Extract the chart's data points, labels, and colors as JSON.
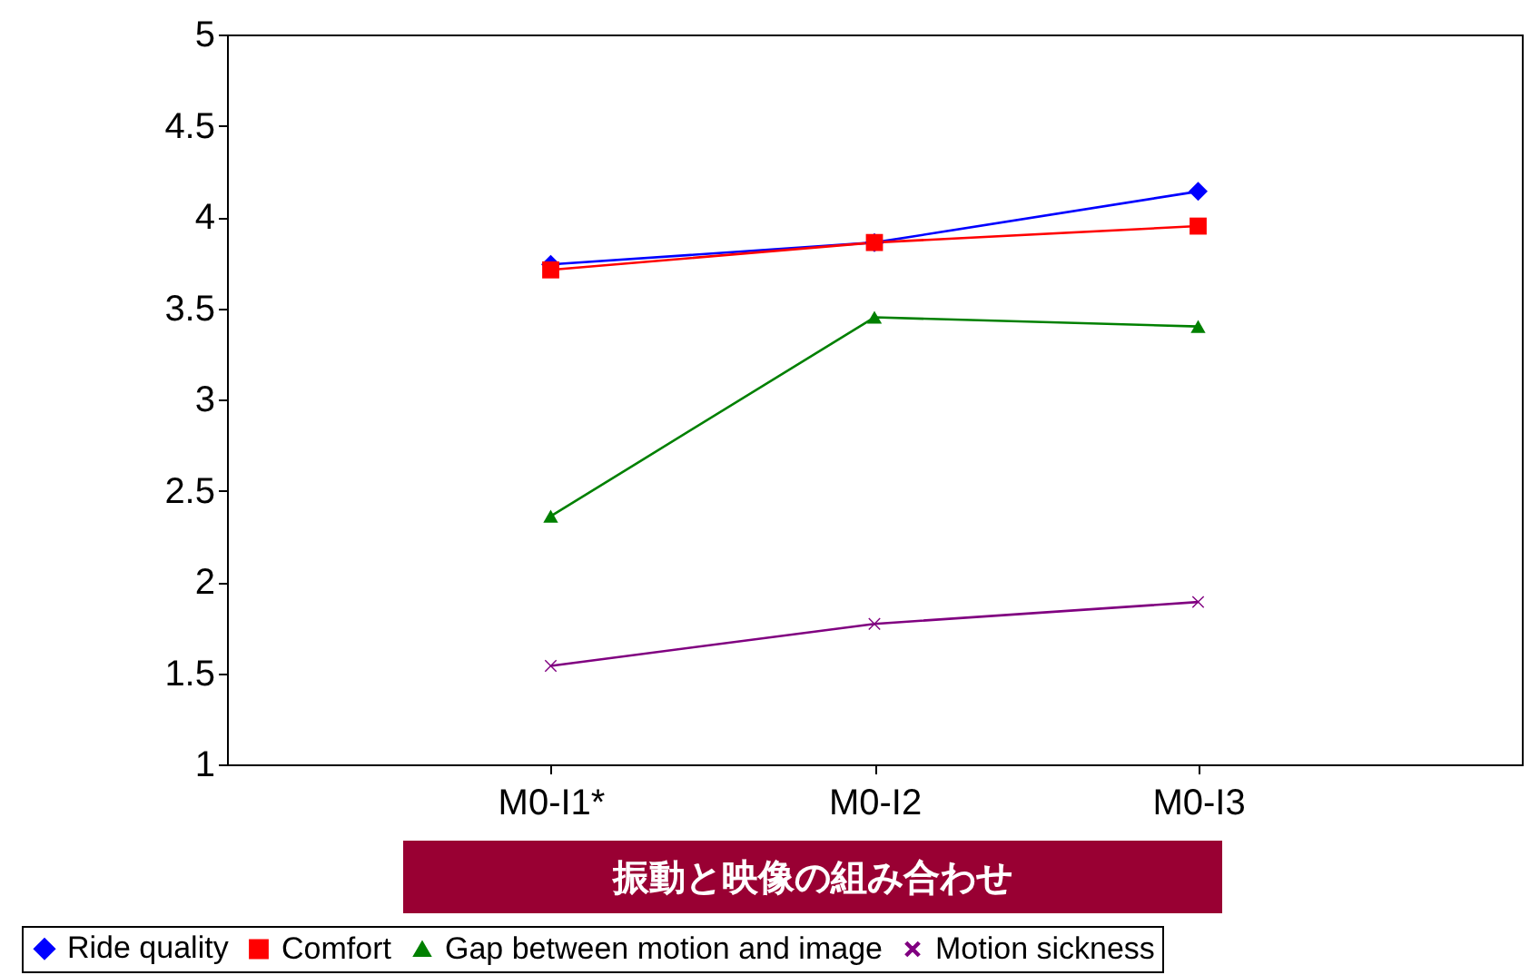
{
  "chart_data": {
    "type": "line",
    "xlabel": "振動と映像の組み合わせ",
    "categories": [
      "M0-I1*",
      "M0-I2",
      "M0-I3"
    ],
    "series": [
      {
        "name": "Ride quality",
        "color": "#0000ff",
        "marker": "diamond",
        "values": [
          3.74,
          3.86,
          4.14
        ]
      },
      {
        "name": "Comfort",
        "color": "#ff0000",
        "marker": "square",
        "values": [
          3.71,
          3.86,
          3.95
        ]
      },
      {
        "name": "Gap between motion and image",
        "color": "#008000",
        "marker": "triangle",
        "values": [
          2.36,
          3.45,
          3.4
        ]
      },
      {
        "name": "Motion sickness",
        "color": "#800080",
        "marker": "cross",
        "values": [
          1.54,
          1.77,
          1.89
        ]
      }
    ],
    "ylim": [
      1,
      5
    ],
    "yticks": [
      1,
      1.5,
      2,
      2.5,
      3,
      3.5,
      4,
      4.5,
      5
    ],
    "grid": false,
    "legend": "bottom"
  }
}
